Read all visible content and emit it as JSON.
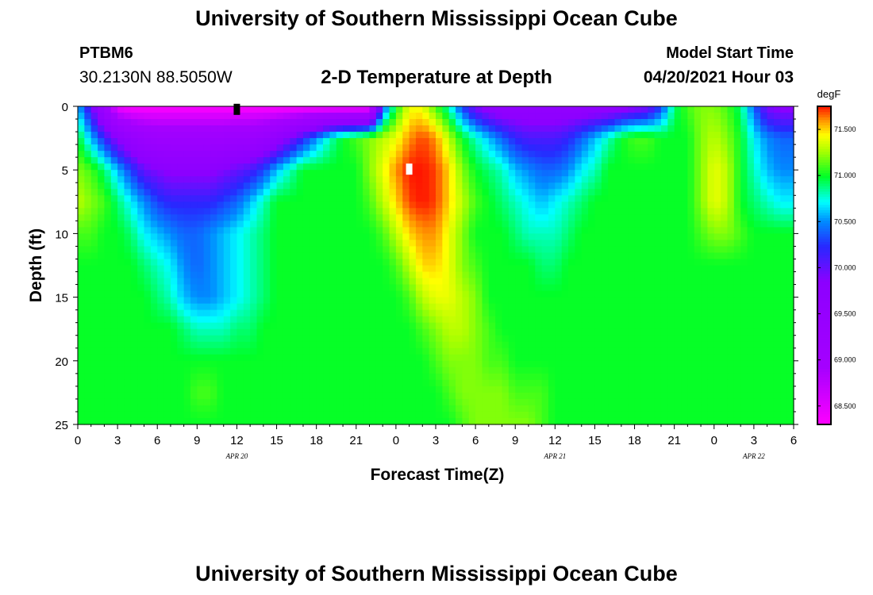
{
  "header": {
    "title": "University of Southern Mississippi Ocean Cube",
    "station": "PTBM6",
    "coords": "30.2130N  88.5050W",
    "chart_title": "2-D Temperature at Depth",
    "model_label": "Model Start Time",
    "model_time": "04/20/2021 Hour 03"
  },
  "footer": {
    "title": "University of Southern Mississippi Ocean Cube"
  },
  "colorbar": {
    "unit": "degF",
    "range": [
      68.3,
      71.75
    ],
    "ticks": [
      "68.500",
      "69.000",
      "69.500",
      "70.000",
      "70.500",
      "71.000",
      "71.500"
    ],
    "tick_values": [
      68.5,
      69.0,
      69.5,
      70.0,
      70.5,
      71.0,
      71.5
    ]
  },
  "chart_data": {
    "type": "heatmap",
    "title": "2-D Temperature at Depth",
    "xlabel": "Forecast Time(Z)",
    "ylabel": "Depth (ft)",
    "x_ticks": [
      "0",
      "3",
      "6",
      "9",
      "12",
      "15",
      "18",
      "21",
      "0",
      "3",
      "6",
      "9",
      "12",
      "15",
      "18",
      "21",
      "0",
      "3",
      "6"
    ],
    "x_hours": [
      0,
      3,
      6,
      9,
      12,
      15,
      18,
      21,
      24,
      27,
      30,
      33,
      36,
      39,
      42,
      45,
      48,
      51,
      54
    ],
    "date_labels": [
      {
        "label": "APR  20",
        "hour": 12
      },
      {
        "label": "APR  21",
        "hour": 36
      },
      {
        "label": "APR  22",
        "hour": 51
      }
    ],
    "xlim": [
      0,
      54
    ],
    "y_ticks": [
      "0",
      "5",
      "10",
      "15",
      "20",
      "25"
    ],
    "y_values": [
      0,
      5,
      10,
      15,
      20,
      25
    ],
    "ylim": [
      0,
      25
    ],
    "y_inverted": true,
    "unit": "degF",
    "z_range": [
      68.3,
      71.75
    ],
    "time_hours": [
      0,
      1,
      2,
      3,
      4,
      5,
      6,
      7,
      8,
      9,
      10,
      11,
      12,
      13,
      14,
      15,
      16,
      17,
      18,
      19,
      20,
      21,
      22,
      23,
      24,
      25,
      26,
      27,
      28,
      29,
      30,
      31,
      32,
      33,
      34,
      35,
      36,
      37,
      38,
      39,
      40,
      41,
      42,
      43,
      44,
      45,
      46,
      47,
      48,
      49,
      50,
      51,
      52,
      53,
      54
    ],
    "depths_ft": [
      0,
      2.5,
      5,
      7.5,
      10,
      12.5,
      15,
      17.5,
      20,
      22.5,
      25
    ],
    "temperature_degF": [
      [
        70.6,
        70.0,
        69.2,
        68.4,
        68.3,
        68.3,
        68.3,
        68.3,
        68.3,
        68.3,
        68.3,
        68.3,
        68.3,
        68.3,
        68.3,
        68.3,
        68.3,
        68.3,
        68.3,
        68.3,
        68.3,
        68.3,
        68.3,
        70.3,
        71.0,
        71.4,
        71.4,
        71.1,
        70.8,
        70.3,
        69.9,
        69.7,
        69.6,
        69.6,
        69.6,
        69.6,
        69.6,
        69.6,
        69.6,
        69.6,
        69.6,
        69.7,
        69.8,
        69.9,
        70.3,
        70.9,
        71.1,
        71.2,
        71.2,
        71.1,
        70.9,
        70.4,
        69.9,
        69.8,
        69.8
      ],
      [
        71.0,
        70.6,
        70.2,
        69.8,
        69.5,
        69.3,
        69.2,
        69.2,
        69.2,
        69.2,
        69.2,
        69.2,
        69.3,
        69.3,
        69.4,
        69.6,
        69.9,
        70.2,
        70.5,
        70.8,
        71.0,
        71.1,
        71.2,
        71.3,
        71.4,
        71.6,
        71.7,
        71.6,
        71.3,
        71.0,
        70.8,
        70.6,
        70.4,
        70.2,
        70.1,
        70.1,
        70.1,
        70.2,
        70.4,
        70.6,
        70.8,
        71.0,
        71.1,
        71.1,
        71.0,
        71.0,
        71.0,
        71.2,
        71.3,
        71.2,
        71.0,
        70.7,
        70.5,
        70.4,
        70.4
      ],
      [
        71.2,
        71.1,
        70.9,
        70.6,
        70.3,
        70.0,
        69.9,
        69.8,
        69.8,
        69.8,
        69.8,
        69.9,
        70.0,
        70.1,
        70.3,
        70.6,
        70.8,
        71.0,
        71.0,
        71.0,
        71.0,
        71.0,
        71.2,
        71.4,
        71.6,
        71.75,
        71.75,
        71.7,
        71.5,
        71.2,
        71.0,
        70.9,
        70.8,
        70.6,
        70.5,
        70.4,
        70.4,
        70.5,
        70.7,
        70.8,
        71.0,
        71.0,
        71.0,
        71.0,
        71.0,
        71.0,
        71.0,
        71.2,
        71.4,
        71.3,
        71.0,
        70.8,
        70.6,
        70.5,
        70.5
      ],
      [
        71.3,
        71.2,
        71.1,
        70.9,
        70.7,
        70.5,
        70.3,
        70.2,
        70.2,
        70.2,
        70.2,
        70.3,
        70.4,
        70.6,
        70.8,
        71.0,
        71.0,
        71.0,
        71.0,
        71.0,
        71.0,
        71.0,
        71.1,
        71.3,
        71.5,
        71.7,
        71.75,
        71.7,
        71.5,
        71.3,
        71.1,
        71.0,
        70.9,
        70.8,
        70.7,
        70.6,
        70.7,
        70.8,
        70.9,
        71.0,
        71.0,
        71.0,
        71.0,
        71.0,
        71.0,
        71.0,
        71.0,
        71.2,
        71.4,
        71.3,
        71.0,
        70.9,
        70.8,
        70.7,
        70.7
      ],
      [
        71.1,
        71.1,
        71.0,
        71.0,
        70.9,
        70.7,
        70.6,
        70.5,
        70.4,
        70.4,
        70.5,
        70.6,
        70.7,
        70.8,
        70.9,
        71.0,
        71.0,
        71.0,
        71.0,
        71.0,
        71.0,
        71.0,
        71.0,
        71.1,
        71.3,
        71.5,
        71.6,
        71.6,
        71.4,
        71.2,
        71.0,
        71.0,
        71.0,
        70.9,
        70.8,
        70.8,
        70.8,
        70.9,
        71.0,
        71.0,
        71.0,
        71.0,
        71.0,
        71.0,
        71.0,
        71.0,
        71.0,
        71.1,
        71.2,
        71.2,
        71.1,
        71.0,
        71.0,
        71.0,
        71.0
      ],
      [
        71.0,
        71.0,
        71.0,
        71.0,
        71.0,
        70.9,
        70.8,
        70.7,
        70.5,
        70.4,
        70.5,
        70.6,
        70.7,
        70.8,
        70.9,
        71.0,
        71.0,
        71.0,
        71.0,
        71.0,
        71.0,
        71.0,
        71.0,
        71.0,
        71.1,
        71.3,
        71.5,
        71.5,
        71.4,
        71.2,
        71.1,
        71.0,
        71.0,
        71.0,
        71.0,
        70.9,
        70.9,
        71.0,
        71.0,
        71.0,
        71.0,
        71.0,
        71.0,
        71.0,
        71.0,
        71.0,
        71.0,
        71.0,
        71.0,
        71.0,
        71.0,
        71.0,
        71.0,
        71.0,
        71.0
      ],
      [
        71.0,
        71.0,
        71.0,
        71.0,
        71.0,
        71.0,
        70.9,
        70.8,
        70.6,
        70.5,
        70.5,
        70.6,
        70.7,
        70.8,
        70.9,
        71.0,
        71.0,
        71.0,
        71.0,
        71.0,
        71.0,
        71.0,
        71.0,
        71.0,
        71.0,
        71.1,
        71.3,
        71.4,
        71.4,
        71.3,
        71.2,
        71.0,
        71.0,
        71.0,
        71.0,
        71.0,
        71.0,
        71.0,
        71.0,
        71.0,
        71.0,
        71.0,
        71.0,
        71.0,
        71.0,
        71.0,
        71.0,
        71.0,
        71.0,
        71.0,
        71.0,
        71.0,
        71.0,
        71.0,
        71.0
      ],
      [
        71.0,
        71.0,
        71.0,
        71.0,
        71.0,
        71.0,
        71.0,
        71.0,
        70.9,
        70.8,
        70.8,
        70.8,
        70.9,
        70.9,
        71.0,
        71.0,
        71.0,
        71.0,
        71.0,
        71.0,
        71.0,
        71.0,
        71.0,
        71.0,
        71.0,
        71.0,
        71.1,
        71.2,
        71.3,
        71.3,
        71.2,
        71.1,
        71.0,
        71.0,
        71.0,
        71.0,
        71.0,
        71.0,
        71.0,
        71.0,
        71.0,
        71.0,
        71.0,
        71.0,
        71.0,
        71.0,
        71.0,
        71.0,
        71.0,
        71.0,
        71.0,
        71.0,
        71.0,
        71.0,
        71.0
      ],
      [
        71.0,
        71.0,
        71.0,
        71.0,
        71.0,
        71.0,
        71.0,
        71.0,
        71.0,
        71.0,
        71.0,
        71.0,
        71.0,
        71.0,
        71.0,
        71.0,
        71.0,
        71.0,
        71.0,
        71.0,
        71.0,
        71.0,
        71.0,
        71.0,
        71.0,
        71.0,
        71.0,
        71.1,
        71.2,
        71.2,
        71.2,
        71.1,
        71.1,
        71.0,
        71.0,
        71.0,
        71.0,
        71.0,
        71.0,
        71.0,
        71.0,
        71.0,
        71.0,
        71.0,
        71.0,
        71.0,
        71.0,
        71.0,
        71.0,
        71.0,
        71.0,
        71.0,
        71.0,
        71.0,
        71.0
      ],
      [
        71.0,
        71.0,
        71.0,
        71.0,
        71.0,
        71.0,
        71.0,
        71.0,
        71.0,
        71.1,
        71.1,
        71.0,
        71.0,
        71.0,
        71.0,
        71.0,
        71.0,
        71.0,
        71.0,
        71.0,
        71.0,
        71.0,
        71.0,
        71.0,
        71.0,
        71.0,
        71.0,
        71.0,
        71.1,
        71.2,
        71.2,
        71.2,
        71.2,
        71.1,
        71.1,
        71.1,
        71.0,
        71.0,
        71.0,
        71.0,
        71.0,
        71.0,
        71.0,
        71.0,
        71.0,
        71.0,
        71.0,
        71.0,
        71.0,
        71.0,
        71.0,
        71.0,
        71.0,
        71.0,
        71.0
      ],
      [
        71.0,
        71.0,
        71.0,
        71.0,
        71.0,
        71.0,
        71.0,
        71.0,
        71.0,
        71.0,
        71.0,
        71.0,
        71.0,
        71.0,
        71.0,
        71.0,
        71.0,
        71.0,
        71.0,
        71.0,
        71.0,
        71.0,
        71.0,
        71.0,
        71.0,
        71.0,
        71.0,
        71.0,
        71.0,
        71.1,
        71.2,
        71.2,
        71.2,
        71.2,
        71.2,
        71.1,
        71.0,
        71.0,
        71.0,
        71.0,
        71.0,
        71.0,
        71.0,
        71.0,
        71.0,
        71.0,
        71.0,
        71.0,
        71.0,
        71.0,
        71.0,
        71.0,
        71.0,
        71.0,
        71.0
      ]
    ],
    "markers": [
      {
        "hour": 12,
        "depth_ft": 0.3,
        "color": "#000000"
      },
      {
        "hour": 25,
        "depth_ft": 5.0,
        "color": "#ffffff"
      }
    ]
  }
}
